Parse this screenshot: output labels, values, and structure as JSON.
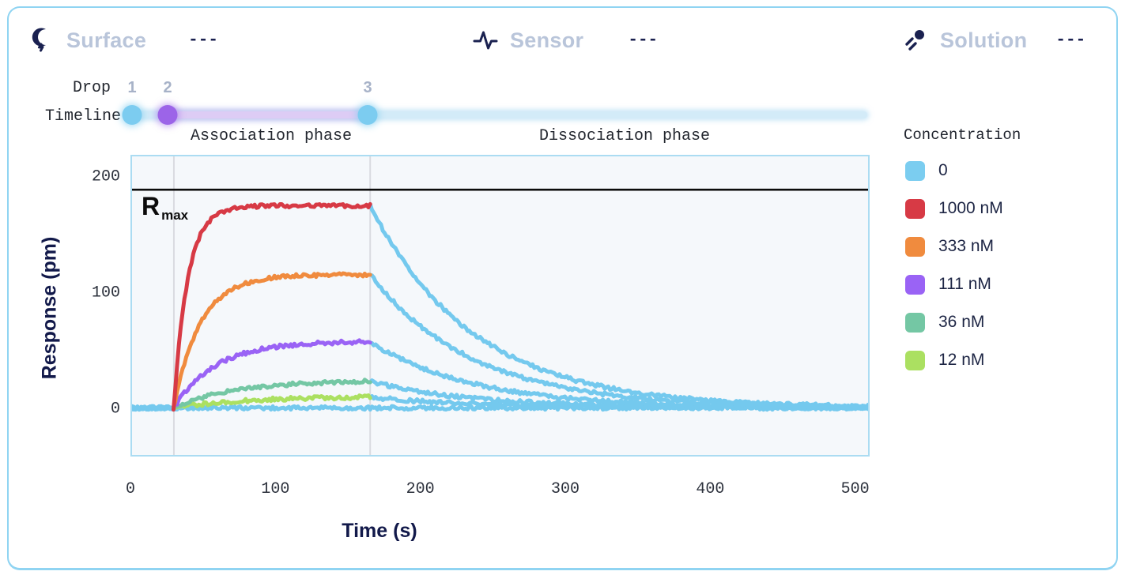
{
  "header": {
    "items": [
      {
        "icon": "surface-icon",
        "label": "Surface",
        "value": "---"
      },
      {
        "icon": "sensor-icon",
        "label": "Sensor",
        "value": "---"
      },
      {
        "icon": "solution-icon",
        "label": "Solution",
        "value": "---"
      }
    ]
  },
  "timeline": {
    "drop_label": "Drop",
    "timeline_label": "Timeline",
    "drops": [
      {
        "number": "1",
        "time_s": 0,
        "color": "#7cccf0"
      },
      {
        "number": "2",
        "time_s": 29,
        "color": "#9c64e8"
      },
      {
        "number": "3",
        "time_s": 165,
        "color": "#7cccf0"
      }
    ],
    "association_label": "Association phase",
    "dissociation_label": "Dissociation phase",
    "track_color": "#d3ebf8",
    "association_segment_color": "#ddccf5"
  },
  "legend": {
    "title": "Concentration",
    "items": [
      {
        "label": "0",
        "color": "#7bcdf0"
      },
      {
        "label": "1000 nM",
        "color": "#d73a45"
      },
      {
        "label": "333 nM",
        "color": "#f08b3e"
      },
      {
        "label": "111 nM",
        "color": "#9a63f5"
      },
      {
        "label": "36 nM",
        "color": "#74c7a4"
      },
      {
        "label": "12 nM",
        "color": "#abe061"
      }
    ]
  },
  "chart_data": {
    "type": "line",
    "title": "",
    "xlabel": "Time (s)",
    "ylabel": "Response (pm)",
    "xlim": [
      0,
      510
    ],
    "ylim": [
      -41,
      219
    ],
    "x_ticks": [
      0,
      100,
      200,
      300,
      400,
      500
    ],
    "y_ticks": [
      0,
      100,
      200
    ],
    "grid_vertical_x": [
      29,
      165
    ],
    "rmax_line": {
      "label": "R",
      "sub": "max",
      "value_pm": 190,
      "color": "#0b0b0b"
    },
    "phases": {
      "baseline_start_s": 0,
      "association_start_s": 29,
      "dissociation_start_s": 165,
      "end_s": 510
    },
    "dissociation_trace_color": "#74c9ee",
    "noise_amplitude_pm": 1.6,
    "series": [
      {
        "name": "0",
        "color": "#74c9ee",
        "plateau_pm": 0,
        "k_obs": 0,
        "k_d": 0
      },
      {
        "name": "12 nM",
        "color": "#abe061",
        "plateau_pm": 10,
        "k_obs": 0.02,
        "k_d": 0.014
      },
      {
        "name": "36 nM",
        "color": "#74c7a4",
        "plateau_pm": 24,
        "k_obs": 0.024,
        "k_d": 0.014
      },
      {
        "name": "111 nM",
        "color": "#9a63f5",
        "plateau_pm": 58,
        "k_obs": 0.035,
        "k_d": 0.014
      },
      {
        "name": "333 nM",
        "color": "#f08b3e",
        "plateau_pm": 116,
        "k_obs": 0.055,
        "k_d": 0.014
      },
      {
        "name": "1000 nM",
        "color": "#d73a45",
        "plateau_pm": 176,
        "k_obs": 0.105,
        "k_d": 0.014
      }
    ]
  },
  "colors": {
    "card_border": "#90d4f2",
    "plot_background": "#f5f8fb",
    "plot_border": "#abdcf2",
    "gridline": "#d9dbe0",
    "navy_text": "#12194a",
    "muted_header_text": "#b9c5da",
    "drop_number_text": "#a7b2c8"
  }
}
